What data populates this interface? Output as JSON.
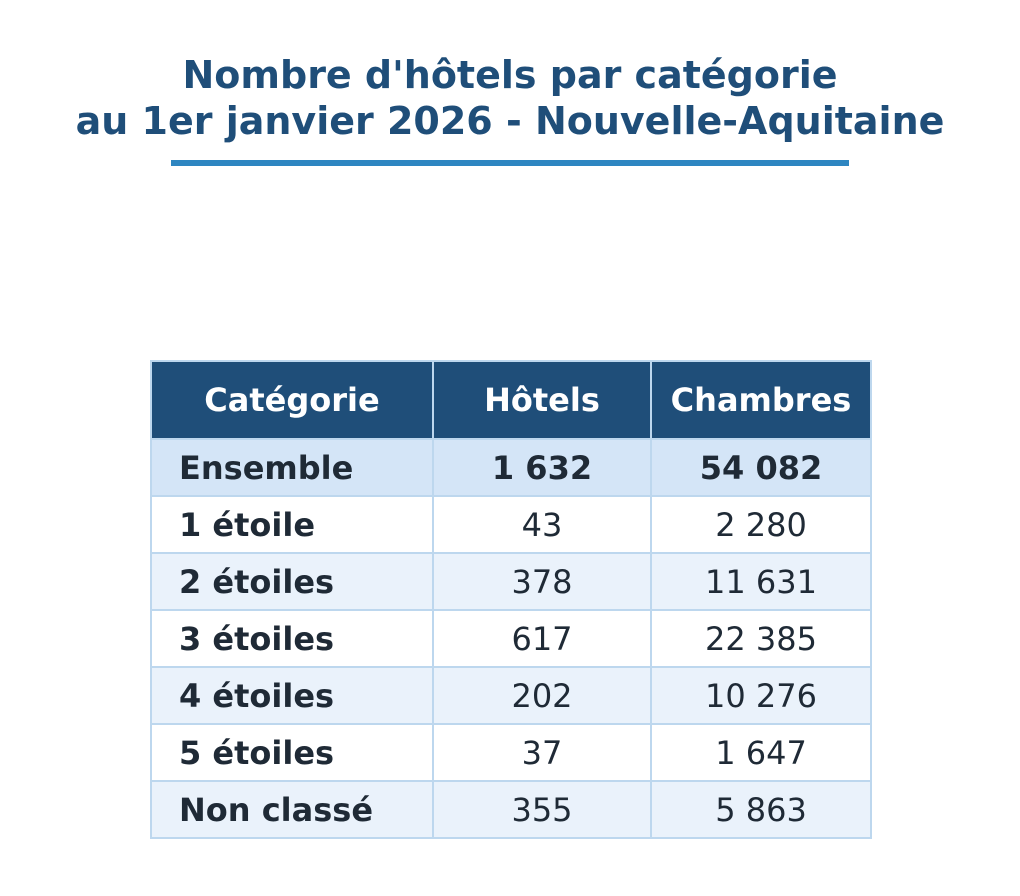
{
  "title_lines": [
    "Nombre d'hôtels par catégorie",
    "au 1er janvier 2026 - Nouvelle-Aquitaine"
  ],
  "colors": {
    "title": "#1f4e79",
    "title_rule": "#2e86c1",
    "header_bg": "#1f4e79",
    "total_row_bg": "#d4e5f7",
    "alt_row_bg": "#eaf2fb",
    "border": "#bdd7ee"
  },
  "chart_data": {
    "type": "table",
    "columns": [
      "Catégorie",
      "Hôtels",
      "Chambres"
    ],
    "rows": [
      {
        "category": "Ensemble",
        "hotels": "1 632",
        "rooms": "54 082",
        "style": "total"
      },
      {
        "category": "1 étoile",
        "hotels": "43",
        "rooms": "2 280",
        "style": "plain"
      },
      {
        "category": "2 étoiles",
        "hotels": "378",
        "rooms": "11 631",
        "style": "alt"
      },
      {
        "category": "3 étoiles",
        "hotels": "617",
        "rooms": "22 385",
        "style": "plain"
      },
      {
        "category": "4 étoiles",
        "hotels": "202",
        "rooms": "10 276",
        "style": "alt"
      },
      {
        "category": "5 étoiles",
        "hotels": "37",
        "rooms": "1 647",
        "style": "plain"
      },
      {
        "category": "Non classé",
        "hotels": "355",
        "rooms": "5 863",
        "style": "alt"
      }
    ]
  }
}
